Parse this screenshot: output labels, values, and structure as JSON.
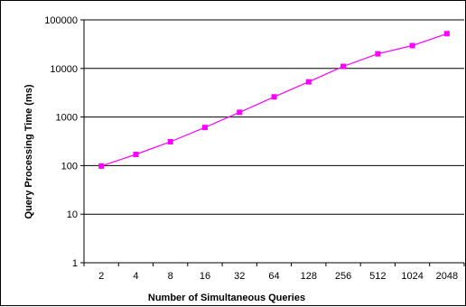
{
  "chart_data": {
    "type": "line",
    "xlabel": "Number of Simultaneous Queries",
    "ylabel": "Query Processing Time (ms)",
    "yscale": "log",
    "ylim": [
      1,
      100000
    ],
    "y_ticks": [
      1,
      10,
      100,
      1000,
      10000,
      100000
    ],
    "y_tick_labels": [
      "1",
      "10",
      "100",
      "1000",
      "10000",
      "100000"
    ],
    "categories": [
      "2",
      "4",
      "8",
      "16",
      "32",
      "64",
      "128",
      "256",
      "512",
      "1024",
      "2048"
    ],
    "series": [
      {
        "values": [
          98,
          170,
          310,
          610,
          1250,
          2600,
          5300,
          11000,
          20000,
          29500,
          52000
        ],
        "color": "#ff00ff",
        "marker": "square"
      }
    ],
    "grid": "horizontal major gridlines",
    "legend": "none"
  }
}
